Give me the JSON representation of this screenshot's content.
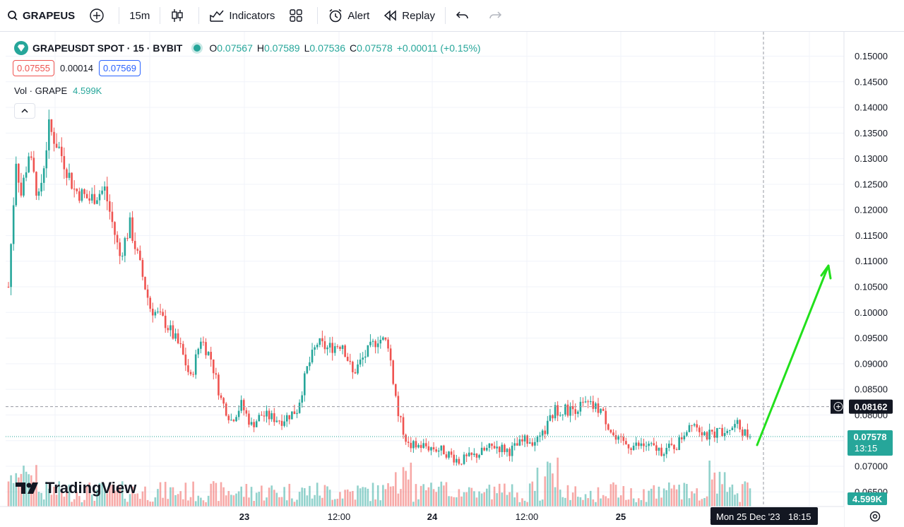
{
  "toolbar": {
    "symbol": "GRAPEUS",
    "interval": "15m",
    "indicators_label": "Indicators",
    "alert_label": "Alert",
    "replay_label": "Replay"
  },
  "legend": {
    "symbol_title": "GRAPEUSDT SPOT · 15 · BYBIT",
    "open_label": "O",
    "open": "0.07567",
    "high_label": "H",
    "high": "0.07589",
    "low_label": "L",
    "low": "0.07536",
    "close_label": "C",
    "close": "0.07578",
    "change": "+0.00011 (+0.15%)",
    "bid": "0.07555",
    "spread": "0.00014",
    "ask": "0.07569"
  },
  "volume_legend": {
    "label": "Vol · GRAPE",
    "value": "4.599K"
  },
  "logo_text": "TradingView",
  "price_axis": {
    "ticks": [
      "0.15000",
      "0.14500",
      "0.14000",
      "0.13500",
      "0.13000",
      "0.12500",
      "0.12000",
      "0.11500",
      "0.11000",
      "0.10500",
      "0.10000",
      "0.09500",
      "0.09000",
      "0.08500",
      "0.08000",
      "0.07500",
      "0.07000",
      "0.06500"
    ],
    "crosshair_price": "0.08162",
    "last_price": "0.07578",
    "countdown": "13:15",
    "volume_badge": "4.599K"
  },
  "time_axis": {
    "ticks": [
      "23",
      "12:00",
      "24",
      "12:00",
      "25",
      "12"
    ],
    "crosshair_time": "Mon 25 Dec '23",
    "crosshair_clock": "18:15"
  },
  "colors": {
    "up": "#26a69a",
    "down": "#ef5350",
    "arrow": "#22e01c"
  },
  "chart_data": {
    "type": "candlestick",
    "title": "GRAPEUSDT SPOT · 15 · BYBIT",
    "xlabel": "",
    "ylabel": "",
    "ylim": [
      0.063,
      0.152
    ],
    "anchors": [
      [
        0,
        0.105
      ],
      [
        3,
        0.13
      ],
      [
        5,
        0.123
      ],
      [
        8,
        0.131
      ],
      [
        12,
        0.122
      ],
      [
        16,
        0.136
      ],
      [
        20,
        0.132
      ],
      [
        26,
        0.124
      ],
      [
        32,
        0.122
      ],
      [
        38,
        0.124
      ],
      [
        44,
        0.111
      ],
      [
        48,
        0.117
      ],
      [
        52,
        0.109
      ],
      [
        56,
        0.101
      ],
      [
        62,
        0.098
      ],
      [
        68,
        0.093
      ],
      [
        72,
        0.087
      ],
      [
        76,
        0.095
      ],
      [
        80,
        0.091
      ],
      [
        84,
        0.083
      ],
      [
        88,
        0.079
      ],
      [
        92,
        0.082
      ],
      [
        96,
        0.078
      ],
      [
        100,
        0.08
      ],
      [
        108,
        0.079
      ],
      [
        114,
        0.081
      ],
      [
        118,
        0.089
      ],
      [
        122,
        0.094
      ],
      [
        126,
        0.093
      ],
      [
        132,
        0.094
      ],
      [
        136,
        0.088
      ],
      [
        140,
        0.091
      ],
      [
        146,
        0.095
      ],
      [
        150,
        0.094
      ],
      [
        154,
        0.08
      ],
      [
        158,
        0.074
      ],
      [
        164,
        0.074
      ],
      [
        172,
        0.073
      ],
      [
        178,
        0.071
      ],
      [
        184,
        0.072
      ],
      [
        192,
        0.074
      ],
      [
        198,
        0.073
      ],
      [
        204,
        0.075
      ],
      [
        210,
        0.075
      ],
      [
        216,
        0.081
      ],
      [
        222,
        0.081
      ],
      [
        228,
        0.082
      ],
      [
        234,
        0.081
      ],
      [
        240,
        0.075
      ],
      [
        246,
        0.074
      ],
      [
        252,
        0.074
      ],
      [
        258,
        0.073
      ],
      [
        264,
        0.074
      ],
      [
        270,
        0.079
      ],
      [
        276,
        0.076
      ],
      [
        282,
        0.077
      ],
      [
        288,
        0.078
      ],
      [
        293,
        0.0755
      ]
    ],
    "candles": 294,
    "volume_max_label": "4.599K",
    "last_close": 0.07578,
    "crosshair_price": 0.08162
  }
}
